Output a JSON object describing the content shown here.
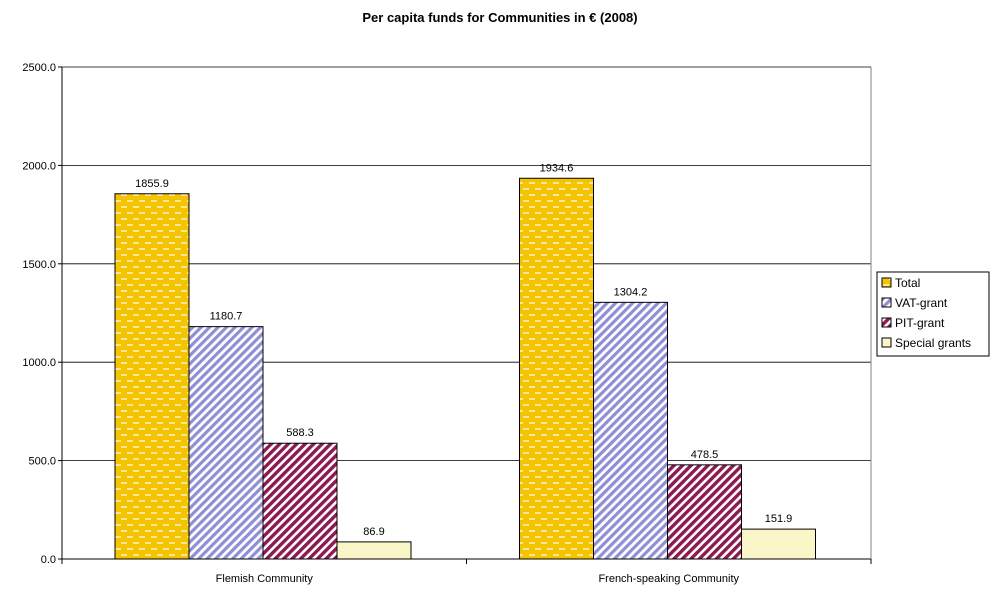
{
  "chart_data": {
    "type": "bar",
    "title": "Per capita funds for Communities in € (2008)",
    "xlabel": "",
    "ylabel": "",
    "categories": [
      "Flemish Community",
      "French-speaking Community"
    ],
    "series": [
      {
        "name": "Total",
        "values": [
          1855.9,
          1934.6
        ],
        "labels": [
          "1855.9",
          "1934.6"
        ],
        "color": "#f5c400",
        "pattern": "dashes"
      },
      {
        "name": "VAT-grant",
        "values": [
          1180.7,
          1304.2
        ],
        "labels": [
          "1180.7",
          "1304.2"
        ],
        "color": "#8f8fd6",
        "pattern": "diagonal-stripes"
      },
      {
        "name": "PIT-grant",
        "values": [
          588.3,
          478.5
        ],
        "labels": [
          "588.3",
          "478.5"
        ],
        "color": "#8b1a4f",
        "pattern": "diagonal-stripes"
      },
      {
        "name": "Special grants",
        "values": [
          86.9,
          151.9
        ],
        "labels": [
          "86.9",
          "151.9"
        ],
        "color": "#fbf6c8",
        "pattern": "solid"
      }
    ],
    "ylim": [
      0,
      2500
    ],
    "yticks": [
      "0.0",
      "500.0",
      "1000.0",
      "1500.0",
      "2000.0",
      "2500.0"
    ],
    "grid": true,
    "legend": "right"
  }
}
